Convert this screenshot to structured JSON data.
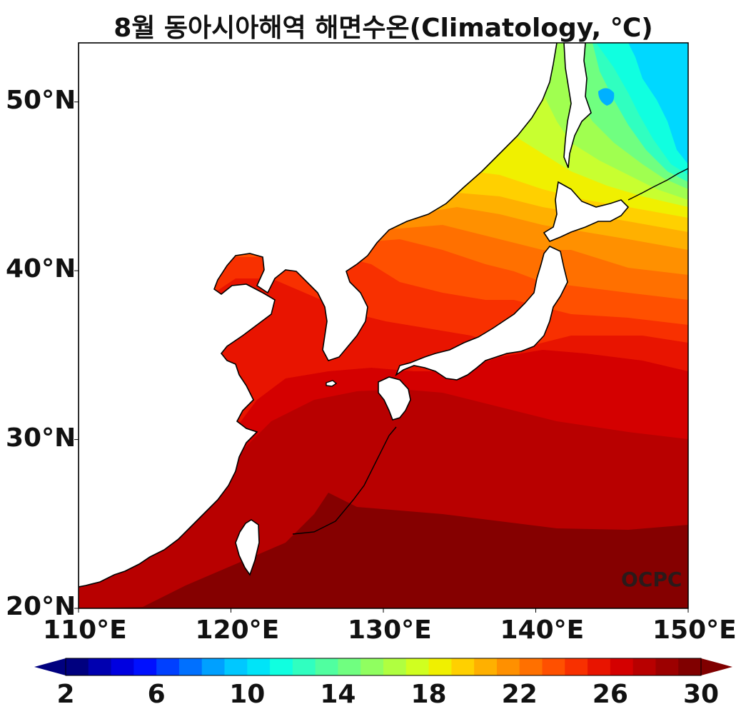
{
  "title": "8월 동아시아해역 해면수온(Climatology, ℃)",
  "watermark": "OCPC",
  "map": {
    "lon_range": [
      110,
      150
    ],
    "lat_range": [
      20,
      53.5
    ],
    "lon_ticks": [
      "110°E",
      "120°E",
      "130°E",
      "140°E",
      "150°E"
    ],
    "lat_ticks": [
      "20°N",
      "30°N",
      "40°N",
      "50°N"
    ],
    "land_color": "#ffffff",
    "coastline_color": "#000000"
  },
  "colorbar": {
    "min": 2,
    "max": 30,
    "step": 1,
    "extend": "both",
    "tick_labels": [
      "2",
      "6",
      "10",
      "14",
      "18",
      "22",
      "26",
      "30"
    ],
    "colors": [
      "#00007f",
      "#0000b0",
      "#0000e0",
      "#0010ff",
      "#0040ff",
      "#0070ff",
      "#00a0ff",
      "#00c8ff",
      "#00e4f8",
      "#10ffe0",
      "#30ffc0",
      "#50ffa0",
      "#70ff80",
      "#90ff60",
      "#b0ff40",
      "#d0ff20",
      "#f0f000",
      "#ffd000",
      "#ffb000",
      "#ff9000",
      "#ff7000",
      "#ff5000",
      "#f83000",
      "#e81400",
      "#d40000",
      "#b80000",
      "#9c0000",
      "#800000"
    ],
    "under_color": "#00007f",
    "over_color": "#800000"
  }
}
